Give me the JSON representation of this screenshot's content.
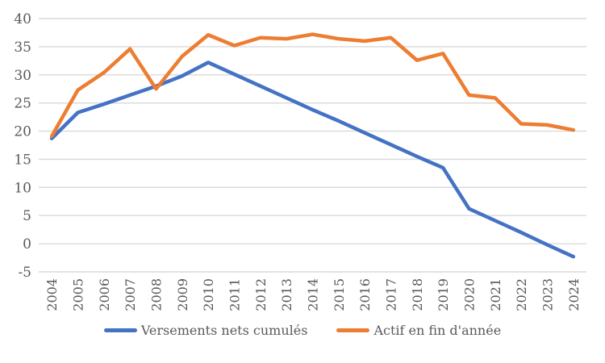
{
  "chart_data": {
    "type": "line",
    "title": "",
    "xlabel": "",
    "ylabel": "",
    "categories": [
      "2004",
      "2005",
      "2006",
      "2007",
      "2008",
      "2009",
      "2010",
      "2011",
      "2012",
      "2013",
      "2014",
      "2015",
      "2016",
      "2017",
      "2018",
      "2019",
      "2020",
      "2021",
      "2022",
      "2023",
      "2024"
    ],
    "series": [
      {
        "name": "Versements nets cumulés",
        "color": "#4472C4",
        "values": [
          18.7,
          23.3,
          24.8,
          26.4,
          28.0,
          29.8,
          32.2,
          30.1,
          28.0,
          25.9,
          23.8,
          21.8,
          19.7,
          17.6,
          15.5,
          13.5,
          6.2,
          4.1,
          2.0,
          -0.2,
          -2.3
        ]
      },
      {
        "name": "Actif en fin d'année",
        "color": "#ED7D31",
        "values": [
          19.1,
          27.3,
          30.4,
          34.6,
          27.5,
          33.3,
          37.1,
          35.2,
          36.6,
          36.4,
          37.2,
          36.4,
          36.0,
          36.6,
          32.6,
          33.8,
          26.4,
          25.9,
          21.3,
          21.1,
          20.2
        ]
      }
    ],
    "ylim": [
      -5,
      40
    ],
    "y_ticks": [
      -5,
      0,
      5,
      10,
      15,
      20,
      25,
      30,
      35,
      40
    ],
    "y_tick_labels": [
      "-5",
      "0",
      "5",
      "10",
      "15",
      "20",
      "25",
      "30",
      "35",
      "40"
    ],
    "grid": true,
    "legend_position": "bottom",
    "x_label_rotation": -90,
    "colors": {
      "gridline": "#D9D9D9",
      "axis_label": "#595959",
      "background": "#FFFFFF"
    }
  }
}
